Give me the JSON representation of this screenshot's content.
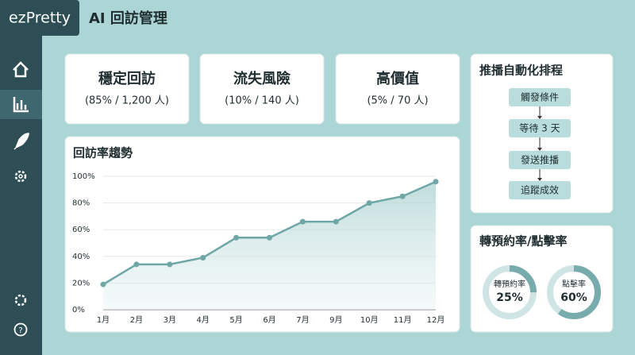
{
  "header": {
    "logo": "ezPretty",
    "title": "AI 回訪管理"
  },
  "cards": [
    {
      "title": "穩定回訪",
      "detail": "(85% / 1,200 人)"
    },
    {
      "title": "流失風險",
      "detail": "(10% / 140 人)"
    },
    {
      "title": "高價值",
      "detail": "(5% / 70 人)"
    }
  ],
  "flow": {
    "title": "推播自動化排程",
    "steps": [
      "觸發條件",
      "等待 3 天",
      "發送推播",
      "追蹤成效"
    ]
  },
  "chart_data": {
    "type": "line",
    "title": "回訪率趨勢",
    "categories": [
      "1月",
      "2月",
      "3月",
      "4月",
      "5月",
      "6月",
      "7月",
      "9月",
      "10月",
      "11月",
      "12月"
    ],
    "values": [
      19,
      34,
      34,
      39,
      54,
      54,
      66,
      66,
      80,
      85,
      96
    ],
    "color": "#6fa6a6",
    "ylim": [
      0,
      100
    ],
    "yticks": [
      {
        "value": 0,
        "label": "0%"
      },
      {
        "value": 20,
        "label": "20%"
      },
      {
        "value": 40,
        "label": "40%"
      },
      {
        "value": 60,
        "label": "60%"
      },
      {
        "value": 80,
        "label": "80%"
      },
      {
        "value": 100,
        "label": "100%"
      }
    ],
    "grid": true
  },
  "conversion": {
    "title": "轉預約率/點擊率",
    "items": [
      {
        "name": "轉預約率",
        "value": 25,
        "value_label": "25%"
      },
      {
        "name": "點擊率",
        "value": 60,
        "value_label": "60%"
      }
    ]
  }
}
